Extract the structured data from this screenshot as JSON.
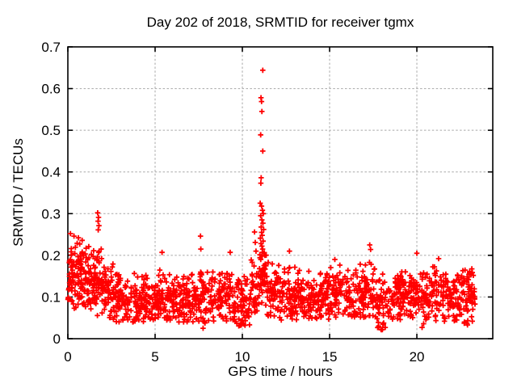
{
  "chart_data": {
    "type": "scatter",
    "title": "Day 202 of 2018, SRMTID for receiver tgmx",
    "xlabel": "GPS time / hours",
    "ylabel": "SRMTID / TECUs",
    "xlim": [
      0,
      24.35
    ],
    "ylim": [
      0,
      0.7
    ],
    "xticks": [
      0,
      5,
      10,
      15,
      20
    ],
    "xtick_labels": [
      "0",
      "5",
      "10",
      "15",
      "20"
    ],
    "yticks": [
      0,
      0.1,
      0.2,
      0.3,
      0.4,
      0.5,
      0.6,
      0.7
    ],
    "ytick_labels": [
      "0",
      "0.1",
      "0.2",
      "0.3",
      "0.4",
      "0.5",
      "0.6",
      "0.7"
    ],
    "grid": true,
    "grid_style": "dashed",
    "legend_position": "none",
    "marker": "plus",
    "marker_color": "#ff0000",
    "grid_color": "#a8a8a8",
    "axis_color": "#000000",
    "background_color": "#ffffff",
    "seed": 1337,
    "data_x_extent": [
      0.0,
      23.35
    ],
    "outlier_points": [
      [
        11.17,
        0.644
      ],
      [
        11.07,
        0.578
      ],
      [
        11.1,
        0.569
      ],
      [
        11.12,
        0.545
      ],
      [
        11.05,
        0.489
      ],
      [
        11.17,
        0.45
      ],
      [
        11.08,
        0.386
      ],
      [
        11.06,
        0.373
      ],
      [
        11.02,
        0.325
      ],
      [
        11.1,
        0.318
      ],
      [
        11.15,
        0.308
      ],
      [
        11.2,
        0.3
      ],
      [
        11.05,
        0.295
      ],
      [
        11.12,
        0.285
      ],
      [
        11.18,
        0.277
      ],
      [
        11.08,
        0.268
      ],
      [
        11.22,
        0.262
      ],
      [
        11.1,
        0.255
      ],
      [
        11.14,
        0.248
      ],
      [
        11.03,
        0.241
      ],
      [
        11.19,
        0.234
      ],
      [
        11.07,
        0.228
      ],
      [
        11.12,
        0.222
      ],
      [
        11.16,
        0.215
      ],
      [
        10.7,
        0.256
      ],
      [
        10.74,
        0.231
      ],
      [
        10.78,
        0.21
      ],
      [
        1.71,
        0.302
      ],
      [
        1.76,
        0.291
      ],
      [
        1.73,
        0.282
      ],
      [
        1.78,
        0.271
      ],
      [
        1.74,
        0.261
      ],
      [
        0.15,
        0.252
      ],
      [
        0.35,
        0.246
      ],
      [
        0.6,
        0.242
      ],
      [
        0.82,
        0.236
      ],
      [
        7.6,
        0.246
      ],
      [
        7.62,
        0.215
      ],
      [
        5.4,
        0.207
      ],
      [
        9.3,
        0.207
      ],
      [
        12.7,
        0.21
      ],
      [
        17.3,
        0.225
      ],
      [
        17.35,
        0.214
      ],
      [
        20.0,
        0.205
      ],
      [
        21.25,
        0.192
      ],
      [
        15.3,
        0.19
      ],
      [
        7.75,
        0.025
      ],
      [
        7.85,
        0.038
      ],
      [
        10.15,
        0.032
      ],
      [
        17.95,
        0.022
      ],
      [
        18.05,
        0.035
      ],
      [
        20.3,
        0.027
      ],
      [
        22.9,
        0.033
      ]
    ],
    "noise_bands": [
      [
        0.0,
        0.5,
        50,
        0.155,
        0.1,
        0.07,
        0.26
      ],
      [
        0.5,
        1.0,
        52,
        0.15,
        0.1,
        0.07,
        0.25
      ],
      [
        1.0,
        1.5,
        50,
        0.14,
        0.09,
        0.06,
        0.23
      ],
      [
        1.5,
        2.0,
        52,
        0.13,
        0.1,
        0.05,
        0.24
      ],
      [
        2.0,
        2.6,
        48,
        0.11,
        0.08,
        0.05,
        0.19
      ],
      [
        2.6,
        3.5,
        72,
        0.095,
        0.07,
        0.04,
        0.17
      ],
      [
        3.5,
        5.0,
        115,
        0.092,
        0.07,
        0.04,
        0.17
      ],
      [
        5.0,
        6.5,
        115,
        0.102,
        0.075,
        0.04,
        0.19
      ],
      [
        6.5,
        7.5,
        78,
        0.096,
        0.07,
        0.04,
        0.17
      ],
      [
        7.5,
        8.2,
        55,
        0.1,
        0.085,
        0.03,
        0.2
      ],
      [
        8.2,
        9.5,
        95,
        0.1,
        0.075,
        0.04,
        0.19
      ],
      [
        9.5,
        10.5,
        78,
        0.09,
        0.075,
        0.03,
        0.17
      ],
      [
        10.5,
        10.95,
        38,
        0.125,
        0.09,
        0.06,
        0.22
      ],
      [
        10.95,
        11.4,
        46,
        0.15,
        0.09,
        0.08,
        0.21
      ],
      [
        11.4,
        12.0,
        48,
        0.115,
        0.08,
        0.05,
        0.19
      ],
      [
        12.0,
        13.2,
        92,
        0.108,
        0.08,
        0.04,
        0.19
      ],
      [
        13.2,
        14.5,
        98,
        0.1,
        0.07,
        0.04,
        0.17
      ],
      [
        14.5,
        16.0,
        112,
        0.105,
        0.075,
        0.04,
        0.18
      ],
      [
        16.0,
        17.0,
        76,
        0.108,
        0.08,
        0.05,
        0.19
      ],
      [
        17.0,
        17.6,
        46,
        0.118,
        0.085,
        0.05,
        0.21
      ],
      [
        17.6,
        18.3,
        50,
        0.09,
        0.085,
        0.02,
        0.17
      ],
      [
        18.3,
        19.5,
        88,
        0.1,
        0.07,
        0.04,
        0.17
      ],
      [
        19.5,
        20.5,
        76,
        0.103,
        0.075,
        0.03,
        0.18
      ],
      [
        20.5,
        21.7,
        86,
        0.105,
        0.078,
        0.04,
        0.19
      ],
      [
        21.7,
        22.7,
        76,
        0.1,
        0.07,
        0.04,
        0.18
      ],
      [
        22.7,
        23.35,
        56,
        0.1,
        0.075,
        0.03,
        0.17
      ]
    ]
  }
}
